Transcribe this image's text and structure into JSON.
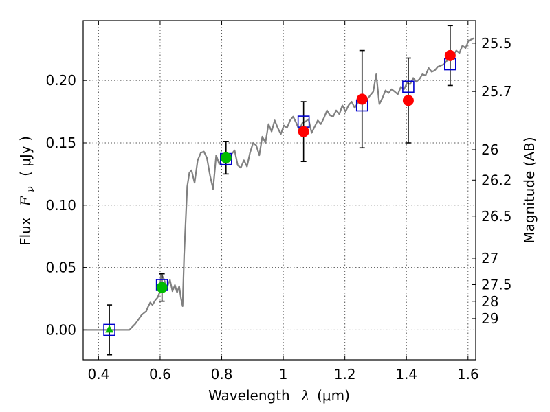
{
  "chart_data": {
    "type": "scatter",
    "xlabel_text": "Wavelength",
    "xlabel_symbol": "λ",
    "xlabel_unit": "(μm)",
    "ylabel_text": "Flux",
    "ylabel_symbol": "F",
    "ylabel_subscript": "ν",
    "ylabel_unit": "( μJy )",
    "right_ylabel": "Magnitude (AB)",
    "xlim": [
      0.35,
      1.625
    ],
    "ylim": [
      -0.024,
      0.248
    ],
    "x_ticks": [
      {
        "value": 0.4,
        "label": "0.4"
      },
      {
        "value": 0.6,
        "label": "0.6"
      },
      {
        "value": 0.8,
        "label": "0.8"
      },
      {
        "value": 1.0,
        "label": "1"
      },
      {
        "value": 1.2,
        "label": "1.2"
      },
      {
        "value": 1.4,
        "label": "1.4"
      },
      {
        "value": 1.6,
        "label": "1.6"
      }
    ],
    "y_ticks": [
      {
        "value": 0.0,
        "label": "0.00"
      },
      {
        "value": 0.05,
        "label": "0.05"
      },
      {
        "value": 0.1,
        "label": "0.10"
      },
      {
        "value": 0.15,
        "label": "0.15"
      },
      {
        "value": 0.2,
        "label": "0.20"
      }
    ],
    "magnitude_ticks": [
      {
        "flux": 0.2299,
        "label": "25.5"
      },
      {
        "flux": 0.1912,
        "label": "25.7"
      },
      {
        "flux": 0.1445,
        "label": "26"
      },
      {
        "flux": 0.1201,
        "label": "26.2"
      },
      {
        "flux": 0.0912,
        "label": "26.5"
      },
      {
        "flux": 0.0575,
        "label": "27"
      },
      {
        "flux": 0.0363,
        "label": "27.5"
      },
      {
        "flux": 0.0229,
        "label": "28"
      },
      {
        "flux": 0.0091,
        "label": "29"
      }
    ],
    "grid": true,
    "zero_line": true,
    "model_sed": {
      "name": "model spectrum",
      "color": "#808080",
      "x": [
        0.35,
        0.5,
        0.52,
        0.54,
        0.545,
        0.555,
        0.56,
        0.568,
        0.575,
        0.585,
        0.592,
        0.598,
        0.603,
        0.612,
        0.622,
        0.632,
        0.64,
        0.648,
        0.655,
        0.662,
        0.668,
        0.673,
        0.678,
        0.688,
        0.695,
        0.702,
        0.712,
        0.722,
        0.732,
        0.742,
        0.752,
        0.762,
        0.772,
        0.782,
        0.792,
        0.802,
        0.812,
        0.822,
        0.832,
        0.842,
        0.852,
        0.862,
        0.872,
        0.882,
        0.892,
        0.902,
        0.912,
        0.922,
        0.932,
        0.942,
        0.952,
        0.962,
        0.972,
        0.982,
        0.992,
        1.002,
        1.012,
        1.022,
        1.032,
        1.042,
        1.052,
        1.062,
        1.072,
        1.082,
        1.092,
        1.102,
        1.112,
        1.122,
        1.132,
        1.142,
        1.152,
        1.162,
        1.172,
        1.182,
        1.192,
        1.202,
        1.212,
        1.222,
        1.232,
        1.242,
        1.252,
        1.262,
        1.272,
        1.282,
        1.292,
        1.302,
        1.312,
        1.322,
        1.332,
        1.342,
        1.352,
        1.362,
        1.372,
        1.382,
        1.392,
        1.402,
        1.412,
        1.422,
        1.432,
        1.442,
        1.452,
        1.462,
        1.472,
        1.482,
        1.492,
        1.502,
        1.512,
        1.522,
        1.532,
        1.542,
        1.552,
        1.562,
        1.572,
        1.582,
        1.592,
        1.602,
        1.612,
        1.62
      ],
      "y": [
        0.0,
        0.0,
        0.005,
        0.012,
        0.013,
        0.015,
        0.018,
        0.022,
        0.02,
        0.024,
        0.026,
        0.03,
        0.045,
        0.041,
        0.034,
        0.04,
        0.031,
        0.036,
        0.03,
        0.035,
        0.025,
        0.019,
        0.06,
        0.115,
        0.126,
        0.128,
        0.118,
        0.136,
        0.142,
        0.143,
        0.138,
        0.124,
        0.113,
        0.14,
        0.133,
        0.138,
        0.136,
        0.138,
        0.141,
        0.144,
        0.132,
        0.13,
        0.136,
        0.131,
        0.142,
        0.15,
        0.148,
        0.14,
        0.155,
        0.15,
        0.165,
        0.159,
        0.168,
        0.162,
        0.157,
        0.164,
        0.162,
        0.168,
        0.171,
        0.166,
        0.16,
        0.166,
        0.167,
        0.169,
        0.158,
        0.163,
        0.168,
        0.165,
        0.17,
        0.176,
        0.172,
        0.171,
        0.176,
        0.173,
        0.18,
        0.175,
        0.18,
        0.183,
        0.178,
        0.182,
        0.185,
        0.186,
        0.185,
        0.188,
        0.191,
        0.205,
        0.181,
        0.186,
        0.192,
        0.19,
        0.193,
        0.191,
        0.189,
        0.195,
        0.193,
        0.198,
        0.197,
        0.202,
        0.199,
        0.201,
        0.205,
        0.204,
        0.21,
        0.207,
        0.208,
        0.211,
        0.212,
        0.213,
        0.216,
        0.218,
        0.22,
        0.224,
        0.222,
        0.228,
        0.226,
        0.232,
        0.233,
        0.234
      ]
    },
    "series": [
      {
        "name": "model photometry",
        "marker": "open-square",
        "color": "#0000cc",
        "x": [
          0.435,
          0.606,
          0.814,
          1.066,
          1.256,
          1.406,
          1.542
        ],
        "y": [
          0.0,
          0.036,
          0.137,
          0.167,
          0.18,
          0.195,
          0.213
        ]
      },
      {
        "name": "optical observations",
        "marker": "filled-circle",
        "color": "#00bb00",
        "x": [
          0.606,
          0.814
        ],
        "y": [
          0.034,
          0.138
        ],
        "yerr": [
          0.011,
          0.013
        ]
      },
      {
        "name": "optical upper limit",
        "marker": "triangle",
        "color": "#00bb00",
        "x": [
          0.435
        ],
        "y": [
          0.0
        ],
        "yerr": [
          0.02
        ]
      },
      {
        "name": "near-infrared observations",
        "marker": "filled-circle",
        "color": "#ff0000",
        "x": [
          1.066,
          1.256,
          1.406,
          1.542
        ],
        "y": [
          0.159,
          0.185,
          0.184,
          0.22
        ],
        "yerr": [
          0.024,
          0.039,
          0.034,
          0.024
        ]
      }
    ]
  }
}
